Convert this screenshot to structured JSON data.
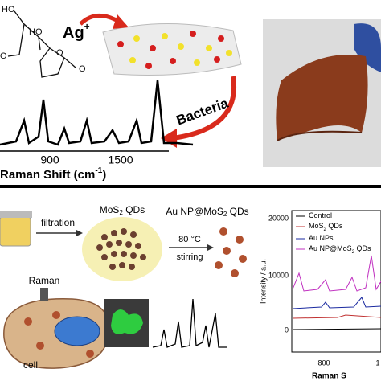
{
  "top_left": {
    "molecule": {
      "hydroxyl_top": "HO",
      "hydroxyl_mid": "HO",
      "oxygen_left": "O",
      "oxygen_ring": "O",
      "oxygen_carbonyl": "O"
    },
    "ion": {
      "main": "Ag",
      "sup": "+"
    },
    "arrow_label": "Bacteria",
    "spectrum_ticks": [
      "900",
      "1500"
    ],
    "axis_label": {
      "main": "Raman Shift (cm",
      "sup": "-1",
      "end": ")"
    }
  },
  "bottom_left": {
    "filtration": "filtration",
    "mos2": {
      "main": "MoS",
      "sub": "2",
      "rest": " QDs"
    },
    "product": {
      "main": "Au NP@MoS",
      "sub": "2",
      "rest": " QDs"
    },
    "temperature": "80 °C",
    "stirring": "stirring",
    "raman": "Raman",
    "cell": "cell"
  },
  "bottom_right": {
    "y_axis_label": "Intensity / a.u.",
    "yticks": [
      "20000",
      "10000",
      "0"
    ],
    "xticks": [
      "800",
      "1"
    ],
    "x_axis_label": "Raman S",
    "legend": [
      {
        "main": "Control"
      },
      {
        "main": "MoS",
        "sub": "2",
        "rest": " QDs"
      },
      {
        "main": "Au NPs"
      },
      {
        "main": "Au NP@MoS",
        "sub": "2",
        "rest": " QDs"
      }
    ]
  }
}
